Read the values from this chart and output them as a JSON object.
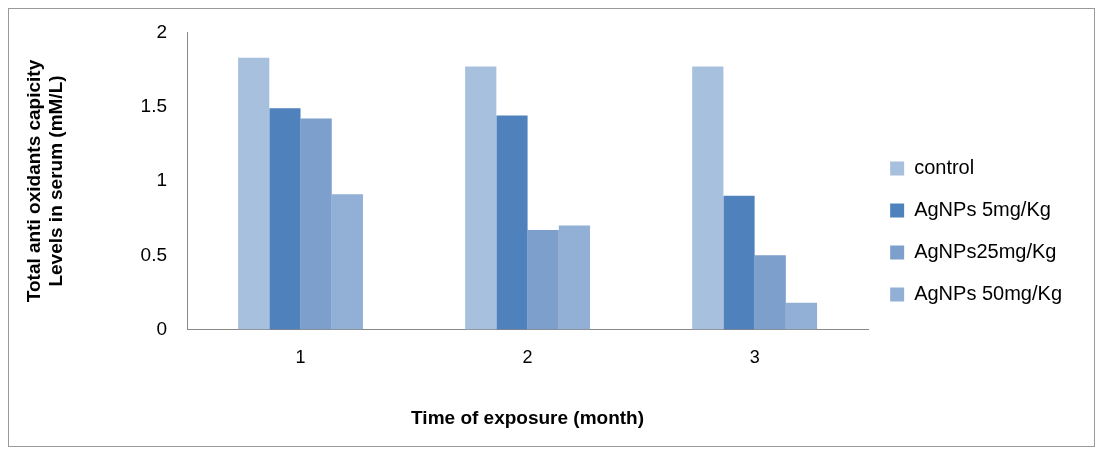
{
  "chart_data": {
    "type": "bar",
    "xlabel": "Time of exposure (month)",
    "ylabel": "Total anti oxidants capicity  Levels in serum (mM/L)",
    "categories": [
      "1",
      "2",
      "3"
    ],
    "series": [
      {
        "name": "control",
        "color": "#a7c0de",
        "values": [
          1.83,
          1.77,
          1.77
        ]
      },
      {
        "name": "AgNPs 5mg/Kg",
        "color": "#4f81bd",
        "values": [
          1.49,
          1.44,
          0.9
        ]
      },
      {
        "name": "AgNPs25mg/Kg",
        "color": "#7d9fcc",
        "values": [
          1.42,
          0.67,
          0.5
        ]
      },
      {
        "name": "AgNPs 50mg/Kg",
        "color": "#92b0d6",
        "values": [
          0.91,
          0.7,
          0.18
        ]
      }
    ],
    "ylim": [
      0,
      2
    ],
    "yticks": [
      0,
      0.5,
      1,
      1.5,
      2
    ],
    "grid": false,
    "legend": "right"
  }
}
